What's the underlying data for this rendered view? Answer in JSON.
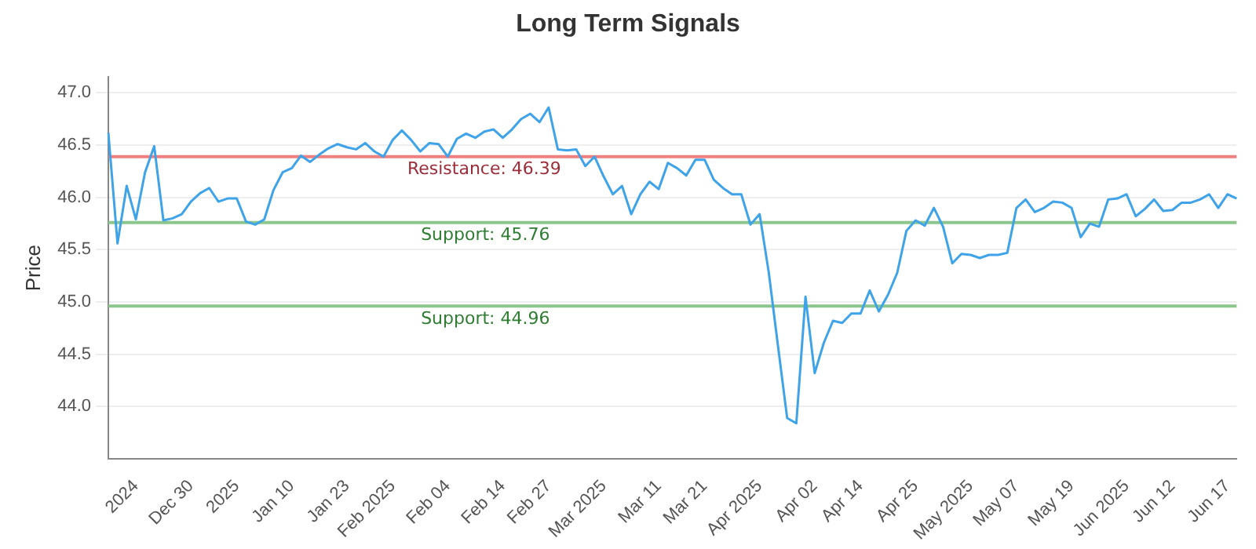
{
  "chart_data": {
    "type": "line",
    "title": "Long Term Signals",
    "ylabel": "Price",
    "categories": [
      null,
      null,
      null,
      "2024",
      null,
      null,
      null,
      null,
      null,
      "Dec 30",
      null,
      null,
      null,
      null,
      "2025",
      null,
      null,
      null,
      null,
      null,
      "Jan 10",
      null,
      null,
      null,
      null,
      null,
      "Jan 23",
      null,
      null,
      null,
      null,
      "Feb 2025",
      null,
      null,
      null,
      null,
      null,
      "Feb 04",
      null,
      null,
      null,
      null,
      null,
      "Feb 14",
      null,
      null,
      null,
      null,
      "Feb 27",
      null,
      null,
      null,
      null,
      null,
      "Mar 2025",
      null,
      null,
      null,
      null,
      null,
      "Mar 11",
      null,
      null,
      null,
      null,
      "Mar 21",
      null,
      null,
      null,
      null,
      null,
      "Apr 2025",
      null,
      null,
      null,
      null,
      null,
      "Apr 02",
      null,
      null,
      null,
      null,
      "Apr 14",
      null,
      null,
      null,
      null,
      null,
      "Apr 25",
      null,
      null,
      null,
      null,
      null,
      "May 2025",
      null,
      null,
      null,
      null,
      "May 07",
      null,
      null,
      null,
      null,
      null,
      "May 19",
      null,
      null,
      null,
      null,
      null,
      "Jun 2025",
      null,
      null,
      null,
      null,
      "Jun 12",
      null,
      null,
      null,
      null,
      null,
      "Jun 17",
      null
    ],
    "series": [
      {
        "color": "#3ea3e8",
        "values": [
          46.62,
          45.56,
          46.11,
          45.79,
          46.24,
          46.49,
          45.78,
          45.8,
          45.84,
          45.96,
          46.04,
          46.09,
          45.96,
          45.99,
          45.99,
          45.77,
          45.74,
          45.79,
          46.07,
          46.24,
          46.28,
          46.4,
          46.34,
          46.41,
          46.47,
          46.51,
          46.48,
          46.46,
          46.52,
          46.44,
          46.39,
          46.55,
          46.64,
          46.55,
          46.44,
          46.52,
          46.51,
          46.39,
          46.56,
          46.61,
          46.57,
          46.63,
          46.65,
          46.57,
          46.65,
          46.75,
          46.8,
          46.72,
          46.86,
          46.46,
          46.45,
          46.46,
          46.3,
          46.39,
          46.2,
          46.03,
          46.11,
          45.84,
          46.03,
          46.15,
          46.08,
          46.33,
          46.28,
          46.21,
          46.36,
          46.36,
          46.17,
          46.09,
          46.03,
          46.03,
          45.74,
          45.84,
          45.28,
          44.58,
          43.89,
          43.84,
          45.05,
          44.32,
          44.61,
          44.82,
          44.8,
          44.89,
          44.89,
          45.11,
          44.91,
          45.07,
          45.28,
          45.68,
          45.78,
          45.73,
          45.9,
          45.72,
          45.37,
          45.46,
          45.45,
          45.42,
          45.45,
          45.45,
          45.47,
          45.9,
          45.98,
          45.86,
          45.9,
          45.96,
          45.95,
          45.9,
          45.62,
          45.75,
          45.72,
          45.98,
          45.99,
          46.03,
          45.82,
          45.89,
          45.98,
          45.87,
          45.88,
          45.95,
          45.95,
          45.98,
          46.03,
          45.9,
          46.03,
          45.99
        ]
      }
    ],
    "ylim": [
      43.5,
      47.15
    ],
    "yticks": [
      {
        "value": 44,
        "label": "44.0"
      },
      {
        "value": 44.5,
        "label": "44.5"
      },
      {
        "value": 45,
        "label": "45.0"
      },
      {
        "value": 45.5,
        "label": "45.5"
      },
      {
        "value": 46,
        "label": "46.0"
      },
      {
        "value": 46.5,
        "label": "46.5"
      },
      {
        "value": 47,
        "label": "47.0"
      }
    ],
    "ref_lines": [
      {
        "axis": "y",
        "value": 46.39,
        "label": "Resistance: 46.39",
        "color": "#f08080"
      },
      {
        "axis": "y",
        "value": 45.76,
        "label": "Support: 45.76",
        "color": "#8cc68c"
      },
      {
        "axis": "y",
        "value": 44.96,
        "label": "Support: 44.96",
        "color": "#8cc68c"
      }
    ],
    "grid": "y",
    "legend": false,
    "marker": "none",
    "line_style": "solid"
  }
}
